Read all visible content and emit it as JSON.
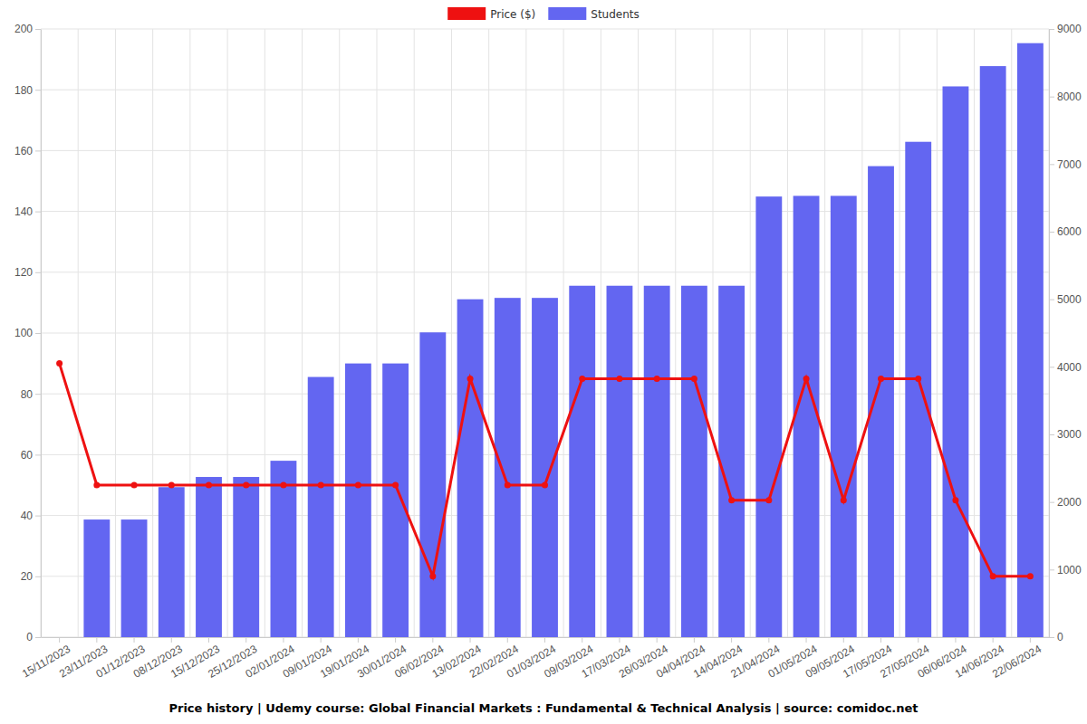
{
  "chart_data": {
    "type": "bar",
    "title": "Price history | Udemy course: Global Financial Markets : Fundamental & Technical Analysis | source: comidoc.net",
    "categories": [
      "15/11/2023",
      "23/11/2023",
      "01/12/2023",
      "08/12/2023",
      "15/12/2023",
      "25/12/2023",
      "02/01/2024",
      "09/01/2024",
      "19/01/2024",
      "30/01/2024",
      "06/02/2024",
      "13/02/2024",
      "22/02/2024",
      "01/03/2024",
      "09/03/2024",
      "17/03/2024",
      "26/03/2024",
      "04/04/2024",
      "14/04/2024",
      "21/04/2024",
      "01/05/2024",
      "09/05/2024",
      "17/05/2024",
      "27/05/2024",
      "06/06/2024",
      "14/06/2024",
      "22/06/2024"
    ],
    "series": [
      {
        "name": "Price ($)",
        "type": "line",
        "color": "#ee1111",
        "marker": "circle",
        "values": [
          90,
          50,
          50,
          50,
          50,
          50,
          50,
          50,
          50,
          50,
          20,
          85,
          50,
          50,
          85,
          85,
          85,
          85,
          45,
          45,
          85,
          45,
          85,
          85,
          45,
          20,
          20
        ]
      },
      {
        "name": "Students",
        "type": "bar",
        "color": "#6366f1",
        "axis": "y2",
        "values": [
          null,
          1740,
          1740,
          2220,
          2370,
          2370,
          2610,
          3850,
          4050,
          4050,
          4510,
          5000,
          5020,
          5020,
          5200,
          5200,
          5200,
          5200,
          5200,
          6520,
          6530,
          6530,
          6970,
          7330,
          8150,
          8450,
          8790
        ]
      }
    ],
    "ylim": [
      0,
      200
    ],
    "yticks": [
      0,
      20,
      40,
      60,
      80,
      100,
      120,
      140,
      160,
      180,
      200
    ],
    "y2lim": [
      0,
      9000
    ],
    "y2ticks": [
      0,
      1000,
      2000,
      3000,
      4000,
      5000,
      6000,
      7000,
      8000,
      9000
    ],
    "grid": true,
    "legend": "top"
  }
}
